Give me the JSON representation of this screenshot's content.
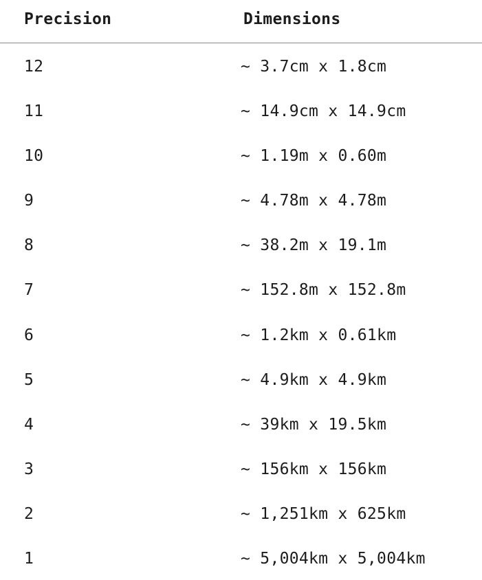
{
  "table": {
    "headers": {
      "precision": "Precision",
      "dimensions": "Dimensions"
    },
    "rows": [
      {
        "precision": "12",
        "dimensions": "~ 3.7cm x 1.8cm"
      },
      {
        "precision": "11",
        "dimensions": "~ 14.9cm x 14.9cm"
      },
      {
        "precision": "10",
        "dimensions": "~ 1.19m x 0.60m"
      },
      {
        "precision": "9",
        "dimensions": "~ 4.78m x 4.78m"
      },
      {
        "precision": "8",
        "dimensions": "~ 38.2m x 19.1m"
      },
      {
        "precision": "7",
        "dimensions": "~ 152.8m x 152.8m"
      },
      {
        "precision": "6",
        "dimensions": "~ 1.2km x 0.61km"
      },
      {
        "precision": "5",
        "dimensions": "~ 4.9km x 4.9km"
      },
      {
        "precision": "4",
        "dimensions": "~ 39km x 19.5km"
      },
      {
        "precision": "3",
        "dimensions": "~ 156km x 156km"
      },
      {
        "precision": "2",
        "dimensions": "~ 1,251km x 625km"
      },
      {
        "precision": "1",
        "dimensions": "~ 5,004km x 5,004km"
      }
    ]
  }
}
